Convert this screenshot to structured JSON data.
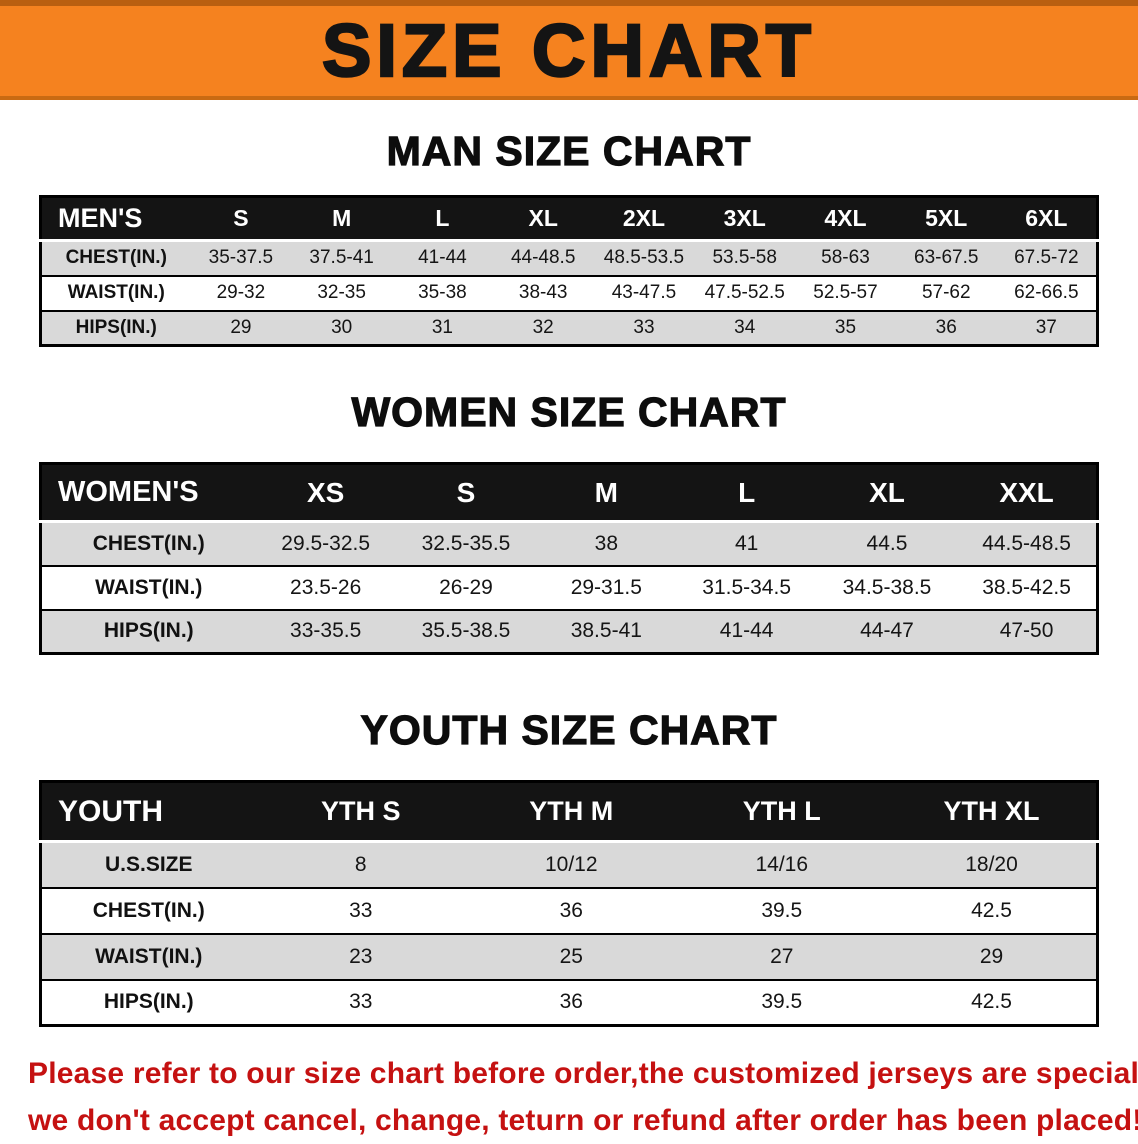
{
  "banner": {
    "title": "SIZE CHART",
    "bg_color": "#f5821f",
    "text_color": "#141414"
  },
  "colors": {
    "table_header_bg": "#141414",
    "table_row_alt": "#d9d9d9",
    "disclaimer_text": "#c51111"
  },
  "sections": [
    {
      "heading": "MAN SIZE CHART",
      "table": {
        "header": [
          "MEN'S",
          "S",
          "M",
          "L",
          "XL",
          "2XL",
          "3XL",
          "4XL",
          "5XL",
          "6XL"
        ],
        "rows": [
          {
            "label": "CHEST(IN.)",
            "values": [
              "35-37.5",
              "37.5-41",
              "41-44",
              "44-48.5",
              "48.5-53.5",
              "53.5-58",
              "58-63",
              "63-67.5",
              "67.5-72"
            ]
          },
          {
            "label": "WAIST(IN.)",
            "values": [
              "29-32",
              "32-35",
              "35-38",
              "38-43",
              "43-47.5",
              "47.5-52.5",
              "52.5-57",
              "57-62",
              "62-66.5"
            ]
          },
          {
            "label": "HIPS(IN.)",
            "values": [
              "29",
              "30",
              "31",
              "32",
              "33",
              "34",
              "35",
              "36",
              "37"
            ]
          }
        ]
      }
    },
    {
      "heading": "WOMEN SIZE CHART",
      "table": {
        "header": [
          "WOMEN'S",
          "XS",
          "S",
          "M",
          "L",
          "XL",
          "XXL"
        ],
        "rows": [
          {
            "label": "CHEST(IN.)",
            "values": [
              "29.5-32.5",
              "32.5-35.5",
              "38",
              "41",
              "44.5",
              "44.5-48.5"
            ]
          },
          {
            "label": "WAIST(IN.)",
            "values": [
              "23.5-26",
              "26-29",
              "29-31.5",
              "31.5-34.5",
              "34.5-38.5",
              "38.5-42.5"
            ]
          },
          {
            "label": "HIPS(IN.)",
            "values": [
              "33-35.5",
              "35.5-38.5",
              "38.5-41",
              "41-44",
              "44-47",
              "47-50"
            ]
          }
        ]
      }
    },
    {
      "heading": "YOUTH SIZE CHART",
      "table": {
        "header": [
          "YOUTH",
          "YTH S",
          "YTH M",
          "YTH L",
          "YTH XL"
        ],
        "rows": [
          {
            "label": "U.S.SIZE",
            "values": [
              "8",
              "10/12",
              "14/16",
              "18/20"
            ]
          },
          {
            "label": "CHEST(IN.)",
            "values": [
              "33",
              "36",
              "39.5",
              "42.5"
            ]
          },
          {
            "label": "WAIST(IN.)",
            "values": [
              "23",
              "25",
              "27",
              "29"
            ]
          },
          {
            "label": "HIPS(IN.)",
            "values": [
              "33",
              "36",
              "39.5",
              "42.5"
            ]
          }
        ]
      }
    }
  ],
  "disclaimer": {
    "line1": "Please refer to our size chart before order,the customized jerseys are special products,",
    "line2": "we don't accept cancel, change, teturn or refund after order has been placed!"
  }
}
